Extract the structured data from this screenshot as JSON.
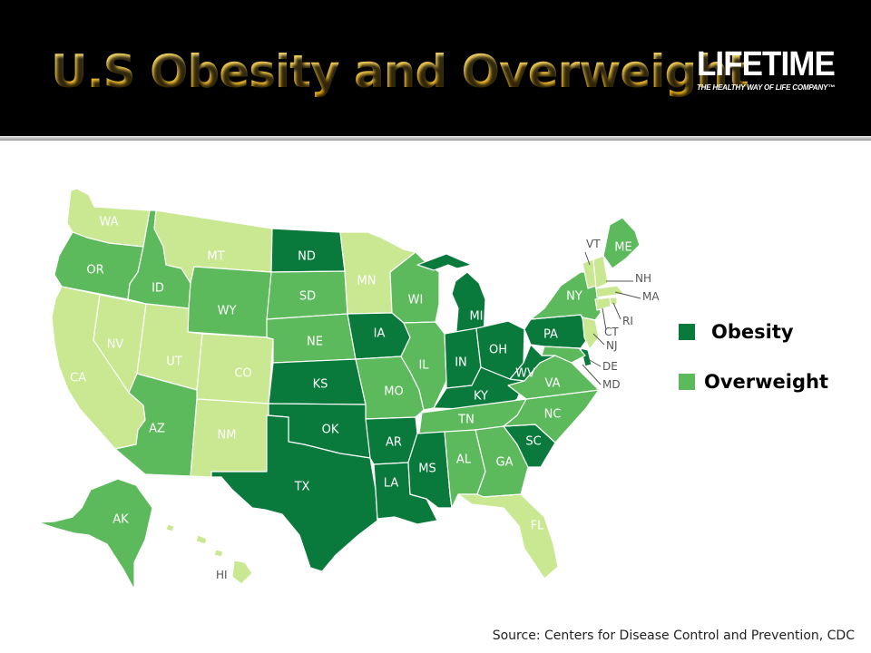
{
  "header": {
    "title": "U.S Obesity and Overweight",
    "logo": {
      "word": "LIFETIME",
      "tagline": "THE HEALTHY WAY OF LIFE COMPANY™"
    }
  },
  "colors": {
    "header_bg": "#000000",
    "title_gold": "#f2c21b",
    "obesity": "#0a7a3c",
    "overweight": "#5cba5c",
    "other": "#c9e891"
  },
  "legend": [
    {
      "key": "obesity",
      "label": "Obesity"
    },
    {
      "key": "overweight",
      "label": "Overweight"
    }
  ],
  "map": {
    "states": [
      {
        "abbr": "WA",
        "category": "other"
      },
      {
        "abbr": "OR",
        "category": "overweight"
      },
      {
        "abbr": "CA",
        "category": "other"
      },
      {
        "abbr": "NV",
        "category": "other"
      },
      {
        "abbr": "ID",
        "category": "overweight"
      },
      {
        "abbr": "MT",
        "category": "other"
      },
      {
        "abbr": "WY",
        "category": "overweight"
      },
      {
        "abbr": "UT",
        "category": "other"
      },
      {
        "abbr": "CO",
        "category": "other"
      },
      {
        "abbr": "AZ",
        "category": "overweight"
      },
      {
        "abbr": "NM",
        "category": "other"
      },
      {
        "abbr": "ND",
        "category": "obesity"
      },
      {
        "abbr": "SD",
        "category": "overweight"
      },
      {
        "abbr": "NE",
        "category": "overweight"
      },
      {
        "abbr": "KS",
        "category": "obesity"
      },
      {
        "abbr": "OK",
        "category": "obesity"
      },
      {
        "abbr": "TX",
        "category": "obesity"
      },
      {
        "abbr": "MN",
        "category": "other"
      },
      {
        "abbr": "IA",
        "category": "obesity"
      },
      {
        "abbr": "MO",
        "category": "overweight"
      },
      {
        "abbr": "AR",
        "category": "obesity"
      },
      {
        "abbr": "LA",
        "category": "obesity"
      },
      {
        "abbr": "WI",
        "category": "overweight"
      },
      {
        "abbr": "IL",
        "category": "overweight"
      },
      {
        "abbr": "MI",
        "category": "obesity"
      },
      {
        "abbr": "IN",
        "category": "obesity"
      },
      {
        "abbr": "OH",
        "category": "obesity"
      },
      {
        "abbr": "KY",
        "category": "obesity"
      },
      {
        "abbr": "TN",
        "category": "overweight"
      },
      {
        "abbr": "MS",
        "category": "obesity"
      },
      {
        "abbr": "AL",
        "category": "overweight"
      },
      {
        "abbr": "GA",
        "category": "overweight"
      },
      {
        "abbr": "FL",
        "category": "other"
      },
      {
        "abbr": "SC",
        "category": "obesity"
      },
      {
        "abbr": "NC",
        "category": "overweight"
      },
      {
        "abbr": "VA",
        "category": "overweight"
      },
      {
        "abbr": "WV",
        "category": "obesity"
      },
      {
        "abbr": "PA",
        "category": "obesity"
      },
      {
        "abbr": "NY",
        "category": "overweight"
      },
      {
        "abbr": "ME",
        "category": "overweight"
      },
      {
        "abbr": "VT",
        "category": "other"
      },
      {
        "abbr": "NH",
        "category": "other"
      },
      {
        "abbr": "MA",
        "category": "other"
      },
      {
        "abbr": "RI",
        "category": "other"
      },
      {
        "abbr": "CT",
        "category": "other"
      },
      {
        "abbr": "NJ",
        "category": "other"
      },
      {
        "abbr": "DE",
        "category": "obesity"
      },
      {
        "abbr": "MD",
        "category": "overweight"
      },
      {
        "abbr": "AK",
        "category": "overweight"
      },
      {
        "abbr": "HI",
        "category": "other"
      }
    ]
  },
  "source": "Source: Centers for Disease Control and Prevention, CDC"
}
